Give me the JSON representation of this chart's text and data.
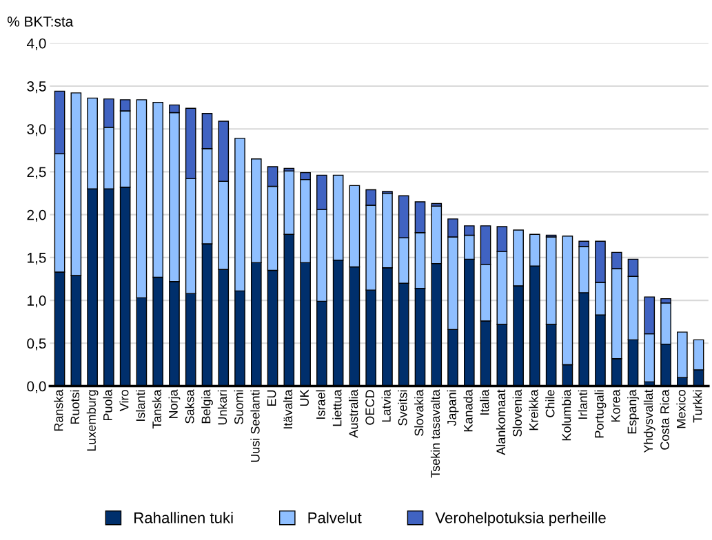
{
  "chart_data": {
    "type": "bar",
    "stacked": true,
    "ylabel": "% BKT:sta",
    "categories": [
      "Ranska",
      "Ruotsi",
      "Luxemburg",
      "Puola",
      "Viro",
      "Islanti",
      "Tanska",
      "Norja",
      "Saksa",
      "Belgia",
      "Unkari",
      "Suomi",
      "Uusi Seelanti",
      "EU",
      "Itävalta",
      "UK",
      "Israel",
      "Liettua",
      "Australia",
      "OECD",
      "Latvia",
      "Sveitsi",
      "Slovakia",
      "Tsekin tasavalta",
      "Japani",
      "Kanada",
      "Italia",
      "Alankomaat",
      "Slovenia",
      "Kreikka",
      "Chile",
      "Kolumbia",
      "Irlanti",
      "Portugali",
      "Korea",
      "Espanja",
      "Yhdysvallat",
      "Costa Rica",
      "Mexico",
      "Turkki"
    ],
    "series": [
      {
        "name": "Rahallinen tuki",
        "color": "#002f6c",
        "values": [
          1.33,
          1.29,
          2.3,
          2.3,
          2.32,
          1.03,
          1.27,
          1.22,
          1.08,
          1.66,
          1.36,
          1.11,
          1.44,
          1.35,
          1.77,
          1.44,
          0.99,
          1.47,
          1.39,
          1.12,
          1.38,
          1.2,
          1.14,
          1.43,
          0.66,
          1.48,
          0.76,
          0.72,
          1.17,
          1.4,
          0.72,
          0.25,
          1.09,
          0.83,
          0.32,
          0.54,
          0.05,
          0.49,
          0.1,
          0.19
        ]
      },
      {
        "name": "Palvelut",
        "color": "#8fbfff",
        "values": [
          1.38,
          2.13,
          1.06,
          0.72,
          0.89,
          2.31,
          2.04,
          1.97,
          1.34,
          1.11,
          1.03,
          1.78,
          1.21,
          0.98,
          0.74,
          0.97,
          1.07,
          0.99,
          0.95,
          0.99,
          0.87,
          0.53,
          0.65,
          0.67,
          1.08,
          0.28,
          0.66,
          0.85,
          0.65,
          0.37,
          1.02,
          1.5,
          0.54,
          0.38,
          1.05,
          0.74,
          0.56,
          0.48,
          0.53,
          0.35
        ]
      },
      {
        "name": "Verohelpotuksia perheille",
        "color": "#4063c2",
        "values": [
          0.73,
          null,
          null,
          0.33,
          0.13,
          null,
          null,
          0.09,
          0.82,
          0.41,
          0.7,
          null,
          null,
          0.23,
          0.03,
          0.08,
          0.4,
          null,
          null,
          0.18,
          0.02,
          0.49,
          0.36,
          0.03,
          0.21,
          0.11,
          0.45,
          0.29,
          null,
          null,
          0.02,
          null,
          0.06,
          0.48,
          0.19,
          0.2,
          0.43,
          0.05,
          null,
          null
        ]
      }
    ],
    "ylim": [
      0,
      4.0
    ],
    "yticks": [
      {
        "value": 0,
        "label": "0,0"
      },
      {
        "value": 0.5,
        "label": "0,5"
      },
      {
        "value": 1.0,
        "label": "1,0"
      },
      {
        "value": 1.5,
        "label": "1,5"
      },
      {
        "value": 2.0,
        "label": "2,0"
      },
      {
        "value": 2.5,
        "label": "2,5"
      },
      {
        "value": 3.0,
        "label": "3,0"
      },
      {
        "value": 3.5,
        "label": "3,5"
      },
      {
        "value": 4.0,
        "label": "4,0"
      }
    ],
    "grid": "y",
    "legend": "bottom"
  }
}
